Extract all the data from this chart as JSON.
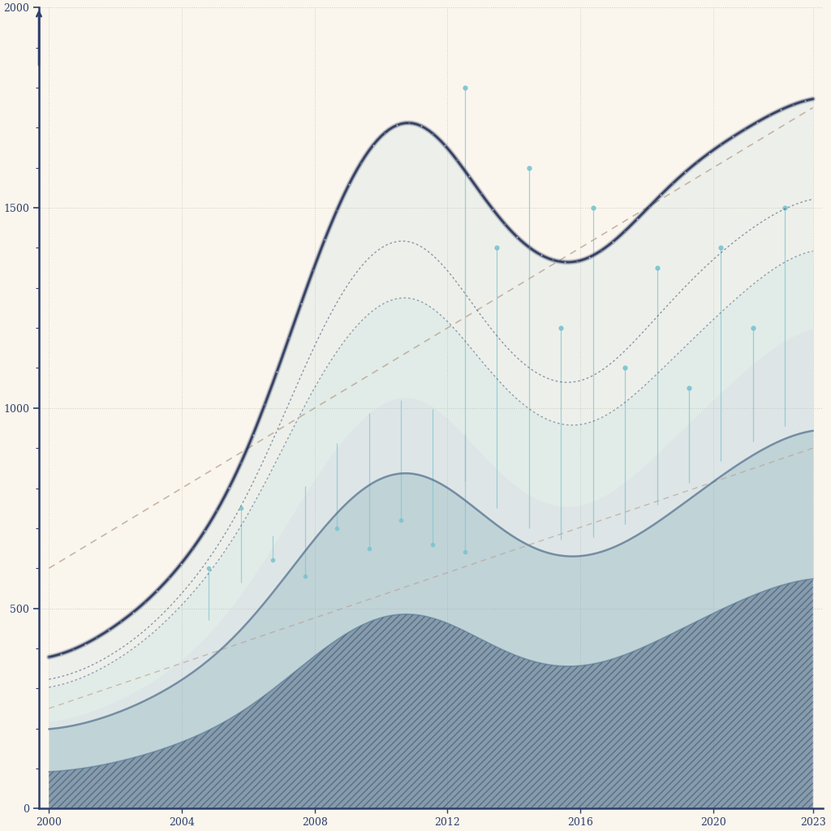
{
  "background_color": "#FAF6EE",
  "axis_color": "#2C3E6B",
  "exports_line_color": "#1C2951",
  "imports_line_color": "#2C3E6B",
  "fill_light": "#A8C8D8",
  "fill_mid": "#7AAABB",
  "fill_dark": "#4A6A88",
  "spike_color": "#7DC4D0",
  "trend_color": "#B8A090",
  "grid_color": "#C8C0B0",
  "years_count": 24,
  "exports_main": [
    350,
    400,
    450,
    500,
    600,
    700,
    850,
    1100,
    1400,
    1600,
    1750,
    1800,
    1700,
    1500,
    1400,
    1350,
    1300,
    1400,
    1500,
    1600,
    1650,
    1700,
    1750,
    1800
  ],
  "imports_main": [
    300,
    340,
    380,
    430,
    530,
    620,
    750,
    950,
    1200,
    1350,
    1450,
    1500,
    1380,
    1200,
    1100,
    1050,
    1000,
    1100,
    1200,
    1300,
    1380,
    1450,
    1500,
    1550
  ],
  "exports_secondary": [
    280,
    320,
    360,
    410,
    500,
    590,
    700,
    880,
    1100,
    1200,
    1300,
    1350,
    1250,
    1100,
    1000,
    950,
    900,
    980,
    1050,
    1150,
    1220,
    1300,
    1380,
    1420
  ],
  "imports_secondary": [
    200,
    230,
    260,
    300,
    360,
    430,
    540,
    680,
    850,
    950,
    1050,
    1100,
    1000,
    870,
    780,
    740,
    710,
    780,
    850,
    950,
    1020,
    1100,
    1180,
    1230
  ],
  "baseline_exports": [
    180,
    200,
    230,
    260,
    310,
    360,
    430,
    550,
    700,
    800,
    880,
    920,
    840,
    720,
    640,
    610,
    580,
    630,
    680,
    760,
    820,
    880,
    940,
    980
  ],
  "baseline_imports": [
    80,
    95,
    110,
    130,
    160,
    190,
    230,
    300,
    400,
    460,
    510,
    540,
    490,
    410,
    360,
    340,
    320,
    360,
    400,
    450,
    490,
    530,
    570,
    600
  ],
  "trend_high": [
    600,
    1750
  ],
  "trend_low": [
    250,
    900
  ],
  "spike_heights_early": [
    600,
    750,
    620,
    580,
    700,
    650,
    720,
    660,
    640
  ],
  "spike_heights_late": [
    1800,
    1400,
    1600,
    1200,
    1500,
    1100,
    1350,
    1050,
    1400,
    1200,
    1500
  ],
  "ylim": [
    0,
    2000
  ],
  "ytick_step": 500,
  "ylabel_partial": [
    "0",
    "500",
    "1000",
    "1500",
    "2000"
  ],
  "xlabel_years": [
    "2000",
    "2023"
  ]
}
